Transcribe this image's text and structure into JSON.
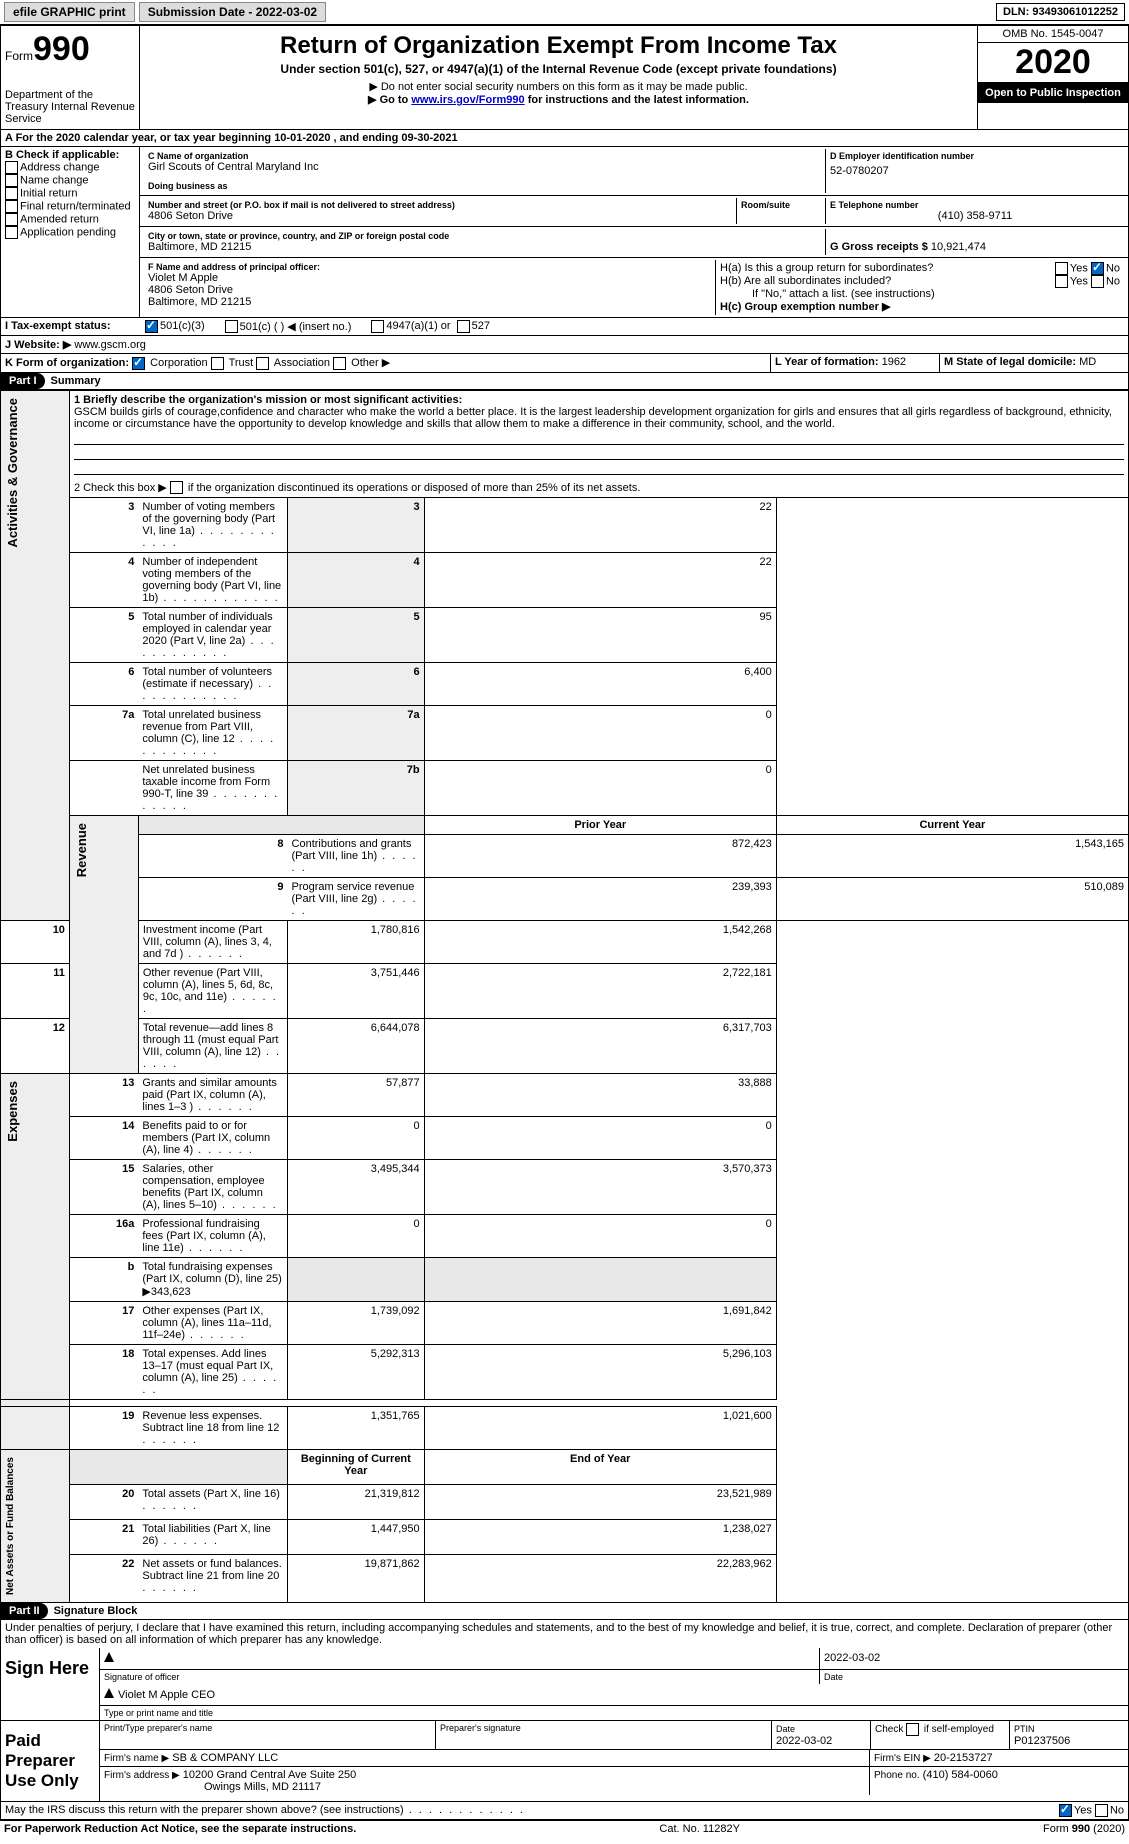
{
  "topbar": {
    "efile": "efile GRAPHIC print",
    "submission_date_label": "Submission Date - 2022-03-02",
    "dln_label": "DLN: 93493061012252"
  },
  "header": {
    "form_label": "Form",
    "form_number": "990",
    "dept": "Department of the Treasury\nInternal Revenue Service",
    "title": "Return of Organization Exempt From Income Tax",
    "subtitle": "Under section 501(c), 527, or 4947(a)(1) of the Internal Revenue Code (except private foundations)",
    "warn1": "Do not enter social security numbers on this form as it may be made public.",
    "warn2_pre": "Go to ",
    "warn2_link": "www.irs.gov/Form990",
    "warn2_post": " for instructions and the latest information.",
    "omb": "OMB No. 1545-0047",
    "year": "2020",
    "open": "Open to Public Inspection"
  },
  "sectionA": "A   For the 2020 calendar year, or tax year beginning 10-01-2020    , and ending 09-30-2021",
  "boxB": {
    "label": "B Check if applicable:",
    "items": [
      "Address change",
      "Name change",
      "Initial return",
      "Final return/terminated",
      "Amended return",
      "Application pending"
    ]
  },
  "boxC": {
    "label_name": "C Name of organization",
    "name": "Girl Scouts of Central Maryland Inc",
    "dba_label": "Doing business as",
    "dba": "",
    "addr_label": "Number and street (or P.O. box if mail is not delivered to street address)",
    "room_label": "Room/suite",
    "addr": "4806 Seton Drive",
    "city_label": "City or town, state or province, country, and ZIP or foreign postal code",
    "city": "Baltimore, MD  21215"
  },
  "boxD": {
    "label": "D Employer identification number",
    "value": "52-0780207"
  },
  "boxE": {
    "label": "E Telephone number",
    "value": "(410) 358-9711"
  },
  "boxG": {
    "label": "G Gross receipts $",
    "value": "10,921,474"
  },
  "boxF": {
    "label": "F Name and address of principal officer:",
    "name": "Violet M Apple",
    "addr": "4806 Seton Drive",
    "city": "Baltimore, MD  21215"
  },
  "boxH": {
    "a_label": "H(a)  Is this a group return for subordinates?",
    "b_label": "H(b)  Are all subordinates included?",
    "b_note": "If \"No,\" attach a list. (see instructions)",
    "c_label": "H(c)  Group exemption number ▶",
    "yes": "Yes",
    "no": "No"
  },
  "boxI": {
    "label": "I   Tax-exempt status:",
    "o1": "501(c)(3)",
    "o2": "501(c) (  ) ◀ (insert no.)",
    "o3": "4947(a)(1) or",
    "o4": "527"
  },
  "boxJ": {
    "label": "J   Website: ▶",
    "value": "www.gscm.org"
  },
  "boxK": {
    "label": "K Form of organization:",
    "o1": "Corporation",
    "o2": "Trust",
    "o3": "Association",
    "o4": "Other ▶"
  },
  "boxL": {
    "label": "L Year of formation:",
    "value": "1962"
  },
  "boxM": {
    "label": "M State of legal domicile:",
    "value": "MD"
  },
  "part1": {
    "label": "Part I",
    "title": "Summary"
  },
  "summary": {
    "side_gov": "Activities & Governance",
    "side_rev": "Revenue",
    "side_exp": "Expenses",
    "side_net": "Net Assets or Fund Balances",
    "line1_label": "1  Briefly describe the organization's mission or most significant activities:",
    "mission": "GSCM builds girls of courage,confidence and character who make the world a better place. It is the largest leadership development organization for girls and ensures that all girls regardless of background, ethnicity, income or circumstance have the opportunity to develop knowledge and skills that allow them to make a difference in their community, school, and the world.",
    "line2": "2   Check this box ▶       if the organization discontinued its operations or disposed of more than 25% of its net assets.",
    "hdr_prior": "Prior Year",
    "hdr_current": "Current Year",
    "hdr_begin": "Beginning of Current Year",
    "hdr_end": "End of Year",
    "rows_top": [
      {
        "n": "3",
        "d": "Number of voting members of the governing body (Part VI, line 1a)",
        "c": "3",
        "v": "22"
      },
      {
        "n": "4",
        "d": "Number of independent voting members of the governing body (Part VI, line 1b)",
        "c": "4",
        "v": "22"
      },
      {
        "n": "5",
        "d": "Total number of individuals employed in calendar year 2020 (Part V, line 2a)",
        "c": "5",
        "v": "95"
      },
      {
        "n": "6",
        "d": "Total number of volunteers (estimate if necessary)",
        "c": "6",
        "v": "6,400"
      },
      {
        "n": "7a",
        "d": "Total unrelated business revenue from Part VIII, column (C), line 12",
        "c": "7a",
        "v": "0"
      },
      {
        "n": "",
        "d": "Net unrelated business taxable income from Form 990-T, line 39",
        "c": "7b",
        "v": "0"
      }
    ],
    "rows_rev": [
      {
        "n": "8",
        "d": "Contributions and grants (Part VIII, line 1h)",
        "p": "872,423",
        "c": "1,543,165"
      },
      {
        "n": "9",
        "d": "Program service revenue (Part VIII, line 2g)",
        "p": "239,393",
        "c": "510,089"
      },
      {
        "n": "10",
        "d": "Investment income (Part VIII, column (A), lines 3, 4, and 7d )",
        "p": "1,780,816",
        "c": "1,542,268"
      },
      {
        "n": "11",
        "d": "Other revenue (Part VIII, column (A), lines 5, 6d, 8c, 9c, 10c, and 11e)",
        "p": "3,751,446",
        "c": "2,722,181"
      },
      {
        "n": "12",
        "d": "Total revenue—add lines 8 through 11 (must equal Part VIII, column (A), line 12)",
        "p": "6,644,078",
        "c": "6,317,703"
      }
    ],
    "rows_exp": [
      {
        "n": "13",
        "d": "Grants and similar amounts paid (Part IX, column (A), lines 1–3 )",
        "p": "57,877",
        "c": "33,888"
      },
      {
        "n": "14",
        "d": "Benefits paid to or for members (Part IX, column (A), line 4)",
        "p": "0",
        "c": "0"
      },
      {
        "n": "15",
        "d": "Salaries, other compensation, employee benefits (Part IX, column (A), lines 5–10)",
        "p": "3,495,344",
        "c": "3,570,373"
      },
      {
        "n": "16a",
        "d": "Professional fundraising fees (Part IX, column (A), line 11e)",
        "p": "0",
        "c": "0"
      },
      {
        "n": "b",
        "d": "Total fundraising expenses (Part IX, column (D), line 25) ▶343,623",
        "p": "",
        "c": "",
        "shade": true
      },
      {
        "n": "17",
        "d": "Other expenses (Part IX, column (A), lines 11a–11d, 11f–24e)",
        "p": "1,739,092",
        "c": "1,691,842"
      },
      {
        "n": "18",
        "d": "Total expenses. Add lines 13–17 (must equal Part IX, column (A), line 25)",
        "p": "5,292,313",
        "c": "5,296,103"
      },
      {
        "n": "19",
        "d": "Revenue less expenses. Subtract line 18 from line 12",
        "p": "1,351,765",
        "c": "1,021,600"
      }
    ],
    "rows_net": [
      {
        "n": "20",
        "d": "Total assets (Part X, line 16)",
        "p": "21,319,812",
        "c": "23,521,989"
      },
      {
        "n": "21",
        "d": "Total liabilities (Part X, line 26)",
        "p": "1,447,950",
        "c": "1,238,027"
      },
      {
        "n": "22",
        "d": "Net assets or fund balances. Subtract line 21 from line 20",
        "p": "19,871,862",
        "c": "22,283,962"
      }
    ]
  },
  "part2": {
    "label": "Part II",
    "title": "Signature Block"
  },
  "penalties": "Under penalties of perjury, I declare that I have examined this return, including accompanying schedules and statements, and to the best of my knowledge and belief, it is true, correct, and complete. Declaration of preparer (other than officer) is based on all information of which preparer has any knowledge.",
  "sign": {
    "here": "Sign Here",
    "sig_of_officer": "Signature of officer",
    "date": "Date",
    "date_val": "2022-03-02",
    "name": "Violet M Apple CEO",
    "name_label": "Type or print name and title"
  },
  "paid": {
    "label": "Paid Preparer Use Only",
    "print_label": "Print/Type preparer's name",
    "sig_label": "Preparer's signature",
    "date_label": "Date",
    "date_val": "2022-03-02",
    "check_label": "Check        if self-employed",
    "ptin_label": "PTIN",
    "ptin": "P01237506",
    "firm_name_label": "Firm's name   ▶",
    "firm_name": "SB & COMPANY LLC",
    "firm_ein_label": "Firm's EIN ▶",
    "firm_ein": "20-2153727",
    "firm_addr_label": "Firm's address ▶",
    "firm_addr": "10200 Grand Central Ave Suite 250",
    "firm_city": "Owings Mills, MD  21117",
    "phone_label": "Phone no.",
    "phone": "(410) 584-0060"
  },
  "discuss": {
    "q": "May the IRS discuss this return with the preparer shown above? (see instructions)",
    "yes": "Yes",
    "no": "No"
  },
  "footer": {
    "left": "For Paperwork Reduction Act Notice, see the separate instructions.",
    "mid": "Cat. No. 11282Y",
    "right": "Form 990 (2020)"
  }
}
